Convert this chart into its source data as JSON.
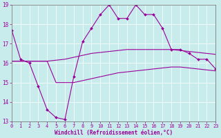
{
  "xlabel": "Windchill (Refroidissement éolien,°C)",
  "background_color": "#c8ecec",
  "line_color": "#990099",
  "x_hours": [
    0,
    1,
    2,
    3,
    4,
    5,
    6,
    7,
    8,
    9,
    10,
    11,
    12,
    13,
    14,
    15,
    16,
    17,
    18,
    19,
    20,
    21,
    22,
    23
  ],
  "series_actual": [
    17.7,
    16.2,
    16.0,
    14.8,
    13.6,
    13.2,
    13.1,
    15.3,
    17.1,
    17.8,
    18.5,
    19.0,
    18.3,
    18.3,
    19.0,
    18.5,
    18.5,
    17.8,
    16.7,
    16.7,
    16.5,
    16.2,
    16.2,
    15.7
  ],
  "line_upper": [
    16.1,
    16.1,
    16.1,
    16.1,
    16.1,
    16.15,
    16.2,
    16.3,
    16.4,
    16.5,
    16.55,
    16.6,
    16.65,
    16.7,
    16.7,
    16.7,
    16.7,
    16.7,
    16.7,
    16.65,
    16.6,
    16.55,
    16.5,
    16.45
  ],
  "line_lower": [
    16.1,
    16.1,
    16.1,
    16.1,
    16.1,
    15.0,
    15.0,
    15.0,
    15.1,
    15.2,
    15.3,
    15.4,
    15.5,
    15.55,
    15.6,
    15.65,
    15.7,
    15.75,
    15.8,
    15.8,
    15.75,
    15.7,
    15.65,
    15.6
  ],
  "ylim": [
    13,
    19
  ],
  "xlim": [
    0,
    23
  ],
  "yticks": [
    13,
    14,
    15,
    16,
    17,
    18,
    19
  ],
  "xticks": [
    0,
    1,
    2,
    3,
    4,
    5,
    6,
    7,
    8,
    9,
    10,
    11,
    12,
    13,
    14,
    15,
    16,
    17,
    18,
    19,
    20,
    21,
    22,
    23
  ]
}
